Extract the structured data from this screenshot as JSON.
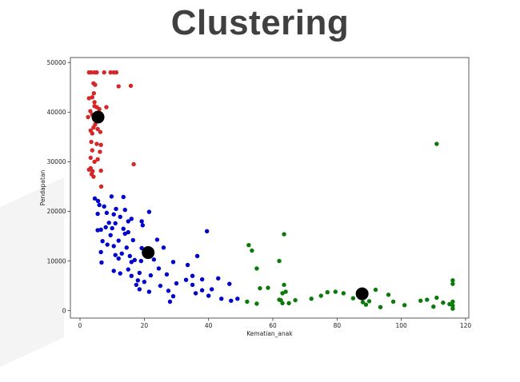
{
  "page": {
    "title": "Clustering"
  },
  "chart_data": {
    "type": "scatter",
    "title": "",
    "xlabel": "Kematian_anak",
    "ylabel": "Pendapatan",
    "xlim": [
      -3,
      121
    ],
    "ylim": [
      -1500,
      51000
    ],
    "xticks": [
      0,
      20,
      40,
      60,
      80,
      100,
      120
    ],
    "yticks": [
      0,
      10000,
      20000,
      30000,
      40000,
      50000
    ],
    "grid": false,
    "legend": "none",
    "series": [
      {
        "color": "#d62728",
        "points": [
          [
            2.8,
            48000
          ],
          [
            3.5,
            48000
          ],
          [
            4.5,
            48000
          ],
          [
            5.2,
            48000
          ],
          [
            7.5,
            48000
          ],
          [
            9.5,
            48000
          ],
          [
            10.5,
            48000
          ],
          [
            11.3,
            48000
          ],
          [
            4.2,
            45800
          ],
          [
            4.7,
            45500
          ],
          [
            12,
            45200
          ],
          [
            15.8,
            45300
          ],
          [
            4.3,
            43800
          ],
          [
            3.8,
            43000
          ],
          [
            2.8,
            42800
          ],
          [
            4.5,
            42000
          ],
          [
            4.5,
            41200
          ],
          [
            5.2,
            41000
          ],
          [
            6,
            40600
          ],
          [
            8.2,
            41000
          ],
          [
            3.2,
            40200
          ],
          [
            3.8,
            39500
          ],
          [
            2.5,
            39000
          ],
          [
            5.7,
            39400
          ],
          [
            6.5,
            39300
          ],
          [
            4.8,
            38600
          ],
          [
            4.7,
            37500
          ],
          [
            4.2,
            36900
          ],
          [
            5.5,
            36600
          ],
          [
            3.3,
            36300
          ],
          [
            6.3,
            36000
          ],
          [
            3.8,
            35700
          ],
          [
            3.5,
            34000
          ],
          [
            5.2,
            33600
          ],
          [
            6.5,
            33400
          ],
          [
            3.8,
            32300
          ],
          [
            6.2,
            32000
          ],
          [
            3.3,
            30800
          ],
          [
            5.5,
            30500
          ],
          [
            4.5,
            30000
          ],
          [
            16.7,
            29500
          ],
          [
            3.3,
            28700
          ],
          [
            2.8,
            28400
          ],
          [
            3.9,
            28100
          ],
          [
            6.5,
            28200
          ],
          [
            3.6,
            27500
          ],
          [
            4.2,
            27000
          ],
          [
            6.6,
            25000
          ]
        ]
      },
      {
        "color": "#0000cc",
        "points": [
          [
            4.6,
            22600
          ],
          [
            9.8,
            23000
          ],
          [
            13.5,
            22900
          ],
          [
            5.6,
            22100
          ],
          [
            6,
            21300
          ],
          [
            7.5,
            21000
          ],
          [
            11.2,
            20500
          ],
          [
            14,
            20300
          ],
          [
            21.5,
            19900
          ],
          [
            5.5,
            19500
          ],
          [
            8.3,
            19700
          ],
          [
            10.5,
            19400
          ],
          [
            12.5,
            18900
          ],
          [
            16,
            18500
          ],
          [
            19.2,
            18000
          ],
          [
            15,
            18000
          ],
          [
            9,
            17700
          ],
          [
            11,
            17600
          ],
          [
            19.5,
            17200
          ],
          [
            8,
            16800
          ],
          [
            10,
            16600
          ],
          [
            13.5,
            16500
          ],
          [
            5.5,
            16200
          ],
          [
            6.5,
            16300
          ],
          [
            15,
            15800
          ],
          [
            14,
            15500
          ],
          [
            9.5,
            15200
          ],
          [
            7,
            14000
          ],
          [
            12,
            14100
          ],
          [
            16.5,
            14200
          ],
          [
            24,
            14300
          ],
          [
            39.5,
            16000
          ],
          [
            8.5,
            13300
          ],
          [
            10.5,
            13000
          ],
          [
            14.5,
            12700
          ],
          [
            19.2,
            12600
          ],
          [
            26,
            12700
          ],
          [
            13,
            11500
          ],
          [
            11,
            11200
          ],
          [
            15.5,
            11000
          ],
          [
            6.5,
            11800
          ],
          [
            22.5,
            11500
          ],
          [
            36.5,
            11000
          ],
          [
            12,
            10500
          ],
          [
            17,
            10200
          ],
          [
            23,
            10300
          ],
          [
            16,
            9800
          ],
          [
            19,
            10000
          ],
          [
            6.7,
            9700
          ],
          [
            29,
            9800
          ],
          [
            33.5,
            9200
          ],
          [
            15,
            8300
          ],
          [
            10.5,
            8000
          ],
          [
            24.5,
            8500
          ],
          [
            18.5,
            7600
          ],
          [
            12.5,
            7500
          ],
          [
            22,
            7100
          ],
          [
            27,
            7300
          ],
          [
            35,
            7000
          ],
          [
            16,
            7000
          ],
          [
            18,
            6100
          ],
          [
            20,
            5800
          ],
          [
            33,
            6200
          ],
          [
            38,
            6300
          ],
          [
            43,
            6500
          ],
          [
            17.5,
            5200
          ],
          [
            25,
            5000
          ],
          [
            30,
            5500
          ],
          [
            35,
            5200
          ],
          [
            18.5,
            4300
          ],
          [
            27.5,
            4000
          ],
          [
            38,
            4100
          ],
          [
            41,
            4300
          ],
          [
            46.5,
            5400
          ],
          [
            21.5,
            3800
          ],
          [
            36,
            3500
          ],
          [
            44,
            2400
          ],
          [
            40,
            3000
          ],
          [
            29,
            2900
          ],
          [
            47,
            2000
          ],
          [
            49,
            2400
          ],
          [
            28,
            1800
          ]
        ]
      },
      {
        "color": "#0a7a0a",
        "points": [
          [
            111,
            33600
          ],
          [
            63.5,
            15400
          ],
          [
            52.5,
            13200
          ],
          [
            53.5,
            12100
          ],
          [
            62,
            10000
          ],
          [
            55,
            8500
          ],
          [
            56,
            4500
          ],
          [
            58.5,
            4600
          ],
          [
            63.5,
            5200
          ],
          [
            67,
            2100
          ],
          [
            63,
            3500
          ],
          [
            64,
            3800
          ],
          [
            62.5,
            2100
          ],
          [
            63,
            1500
          ],
          [
            65,
            1500
          ],
          [
            55,
            1400
          ],
          [
            52,
            1800
          ],
          [
            62,
            2200
          ],
          [
            72,
            2400
          ],
          [
            75,
            3000
          ],
          [
            77,
            3700
          ],
          [
            79.5,
            3800
          ],
          [
            82,
            3500
          ],
          [
            85,
            2500
          ],
          [
            88,
            1700
          ],
          [
            89,
            1200
          ],
          [
            90,
            1900
          ],
          [
            92,
            4200
          ],
          [
            93.5,
            700
          ],
          [
            96,
            3200
          ],
          [
            97.5,
            1800
          ],
          [
            101,
            1100
          ],
          [
            108,
            2200
          ],
          [
            111,
            2600
          ],
          [
            113,
            1600
          ],
          [
            116,
            6100
          ],
          [
            116,
            5400
          ],
          [
            116,
            1800
          ],
          [
            116,
            1000
          ],
          [
            116,
            400
          ],
          [
            110,
            800
          ],
          [
            115,
            1300
          ],
          [
            106,
            2000
          ]
        ]
      }
    ],
    "centroids": {
      "color": "#000000",
      "points": [
        [
          5.6,
          39000
        ],
        [
          21.2,
          11700
        ],
        [
          87.8,
          3400
        ]
      ]
    }
  }
}
